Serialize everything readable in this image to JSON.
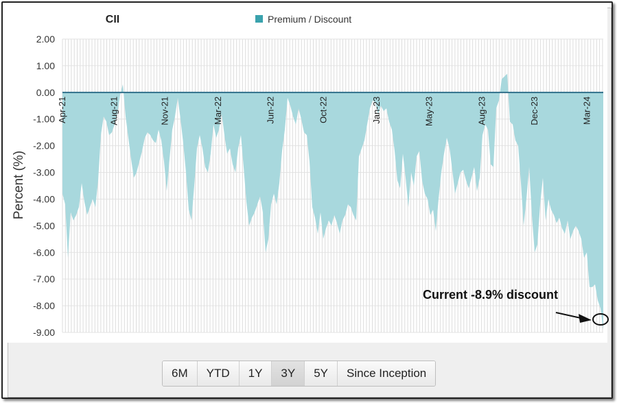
{
  "chart_data": {
    "type": "area",
    "title": "CII",
    "ylabel": "Percent (%)",
    "legend": {
      "label": "Premium / Discount",
      "color": "#3aa2ad",
      "placement": "top-center"
    },
    "ylim": [
      -9,
      2
    ],
    "yticks": [
      "2.00",
      "1.00",
      "0.00",
      "-1.00",
      "-2.00",
      "-3.00",
      "-4.00",
      "-5.00",
      "-6.00",
      "-7.00",
      "-8.00",
      "-9.00"
    ],
    "ytick_values": [
      2,
      1,
      0,
      -1,
      -2,
      -3,
      -4,
      -5,
      -6,
      -7,
      -8,
      -9
    ],
    "xticks": [
      "Apr-21",
      "Aug-21",
      "Nov-21",
      "Mar-22",
      "Jun-22",
      "Oct-22",
      "Jan-23",
      "May-23",
      "Aug-23",
      "Dec-23",
      "Mar-24"
    ],
    "grid": true,
    "fill_color": "#a8d8dd",
    "series": [
      {
        "name": "Premium / Discount",
        "values": [
          -3.8,
          -4.2,
          -6.2,
          -4.5,
          -4.8,
          -4.6,
          -4.3,
          -3.4,
          -4.1,
          -4.6,
          -4.3,
          -4.0,
          -4.3,
          -3.3,
          -1.6,
          -0.9,
          -1.1,
          -1.6,
          -1.5,
          -1.2,
          -0.8,
          -0.1,
          0.3,
          -0.9,
          -1.7,
          -2.5,
          -3.2,
          -3.0,
          -2.6,
          -2.2,
          -1.7,
          -1.5,
          -1.6,
          -1.8,
          -1.9,
          -1.4,
          -1.8,
          -2.6,
          -3.7,
          -2.5,
          -1.4,
          -0.9,
          -0.2,
          -1.0,
          -1.9,
          -3.0,
          -4.4,
          -4.8,
          -3.5,
          -2.1,
          -1.6,
          -2.1,
          -2.8,
          -3.0,
          -2.3,
          -1.2,
          -1.7,
          -1.4,
          -0.8,
          -1.6,
          -2.3,
          -2.1,
          -2.7,
          -3.0,
          -2.1,
          -1.6,
          -2.8,
          -4.1,
          -5.0,
          -4.7,
          -4.5,
          -4.2,
          -3.9,
          -4.5,
          -6.0,
          -5.5,
          -4.2,
          -3.8,
          -4.2,
          -3.4,
          -2.2,
          -1.4,
          -0.2,
          -0.5,
          -0.9,
          -1.2,
          -0.6,
          -1.0,
          -1.5,
          -1.6,
          -2.6,
          -4.3,
          -4.7,
          -5.3,
          -4.5,
          -5.5,
          -5.1,
          -4.8,
          -5.0,
          -4.6,
          -4.9,
          -5.3,
          -4.8,
          -4.6,
          -4.2,
          -4.3,
          -4.6,
          -4.8,
          -2.4,
          -2.1,
          -1.8,
          -1.2,
          -0.6,
          -0.3,
          -0.4,
          -0.8,
          -0.5,
          -0.7,
          -0.6,
          -1.1,
          -1.4,
          -2.2,
          -3.3,
          -3.6,
          -2.3,
          -3.2,
          -4.3,
          -3.0,
          -3.5,
          -2.4,
          -2.2,
          -3.3,
          -3.8,
          -4.0,
          -4.6,
          -4.4,
          -5.2,
          -4.0,
          -3.0,
          -2.3,
          -1.7,
          -2.1,
          -2.9,
          -3.8,
          -3.4,
          -3.0,
          -2.9,
          -3.3,
          -3.6,
          -3.2,
          -2.8,
          -3.7,
          -3.2,
          -1.6,
          -1.2,
          -1.4,
          -2.7,
          -2.8,
          -0.6,
          -0.3,
          0.5,
          0.6,
          0.7,
          -1.1,
          -1.2,
          -1.8,
          -2.0,
          -3.4,
          -5.0,
          -4.0,
          -2.8,
          -4.6,
          -6.0,
          -5.7,
          -4.2,
          -3.2,
          -4.8,
          -4.0,
          -4.4,
          -4.6,
          -4.9,
          -4.7,
          -5.1,
          -5.3,
          -4.8,
          -5.5,
          -5.2,
          -5.0,
          -5.2,
          -5.5,
          -6.2,
          -6.0,
          -7.3,
          -7.3,
          -7.2,
          -7.8,
          -8.1,
          -8.9
        ]
      }
    ],
    "annotation": "Current -8.9% discount"
  },
  "buttons": [
    {
      "label": "6M",
      "active": false
    },
    {
      "label": "YTD",
      "active": false
    },
    {
      "label": "1Y",
      "active": false
    },
    {
      "label": "3Y",
      "active": true
    },
    {
      "label": "5Y",
      "active": false
    },
    {
      "label": "Since Inception",
      "active": false
    }
  ]
}
